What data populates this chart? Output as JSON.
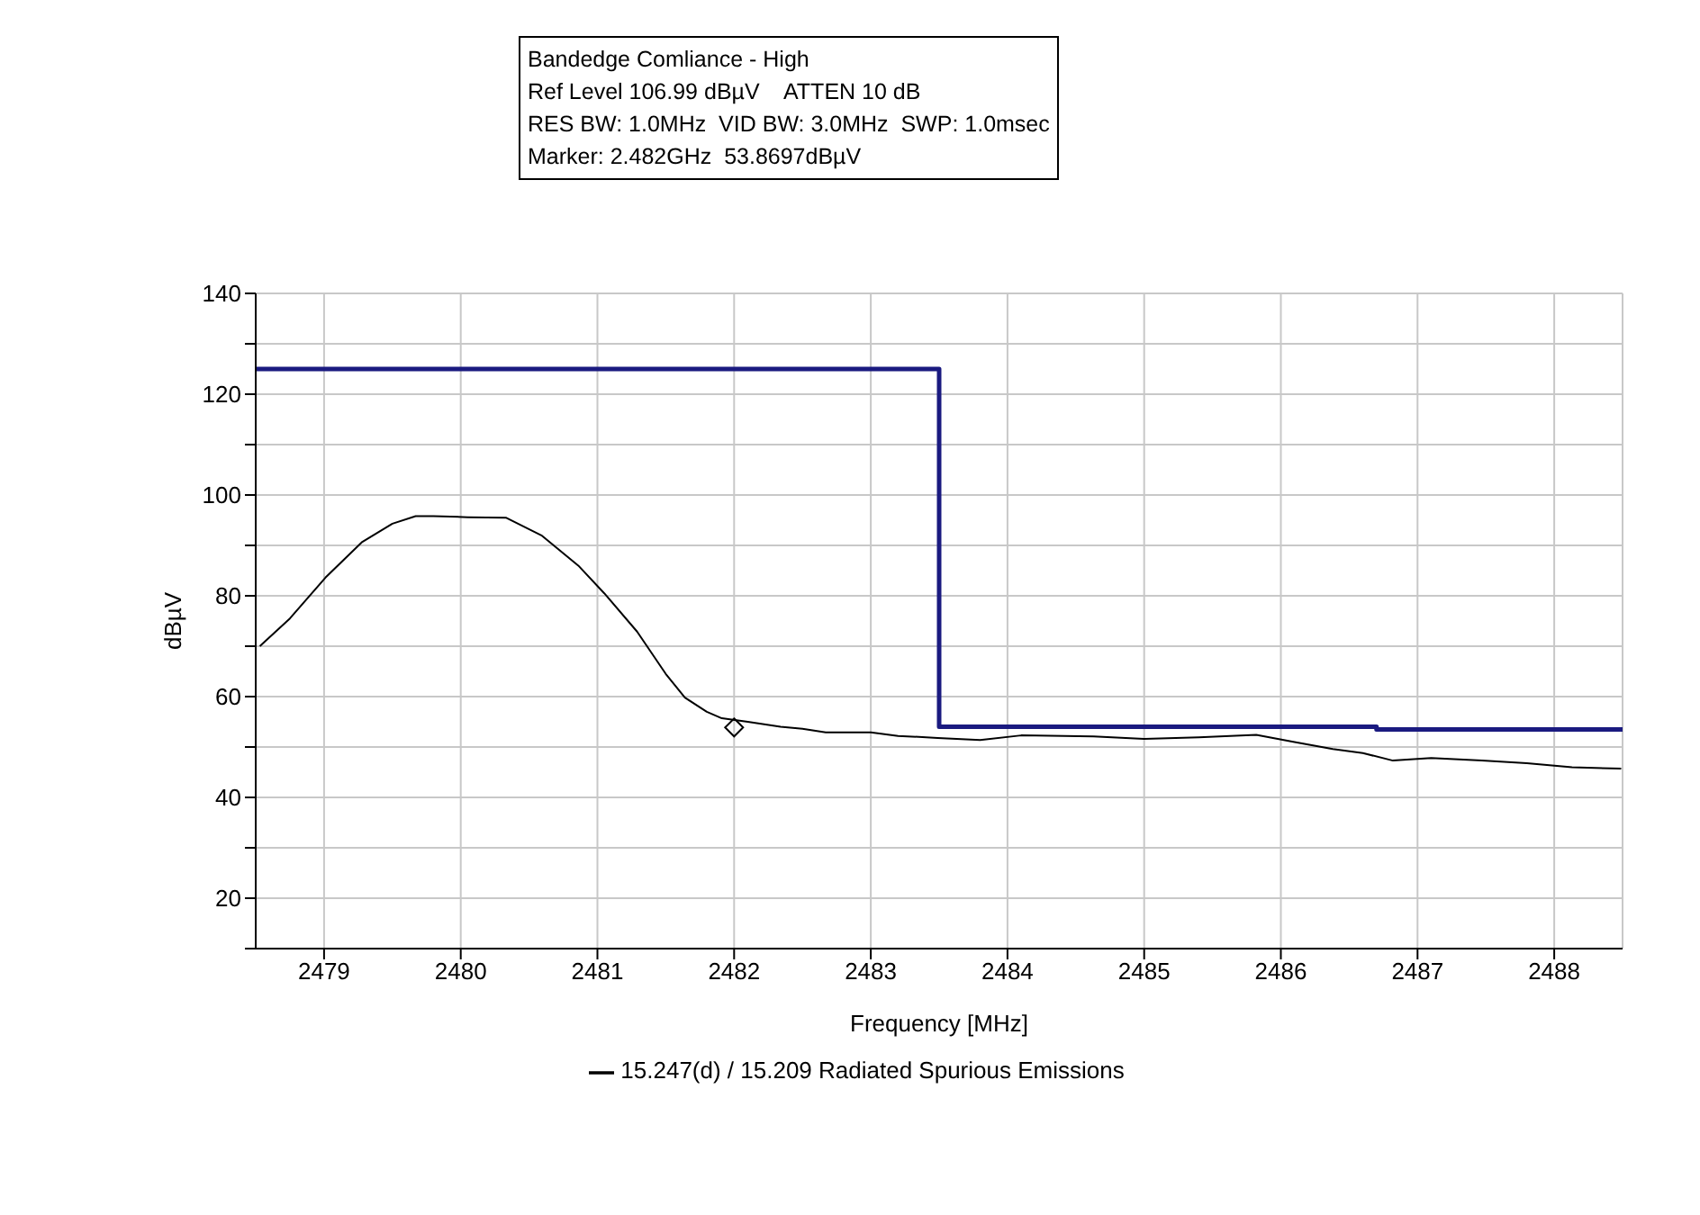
{
  "chart_data": {
    "type": "line",
    "title": "Bandedge Comliance - High",
    "annotations": [
      "Ref Level 106.99 dBµV    ATTEN 10 dB",
      "RES BW: 1.0MHz  VID BW: 3.0MHz  SWP: 1.0msec",
      "Marker: 2.482GHz  53.8697dBµV"
    ],
    "xlabel": "Frequency [MHz]",
    "ylabel": "dBµV",
    "series": [
      {
        "name": "15.247(d) / 15.209 Radiated Spurious Emissions",
        "color": "#000000",
        "x": [
          2478.53,
          2478.75,
          2479.01,
          2479.28,
          2479.5,
          2479.67,
          2479.8,
          2480.05,
          2480.33,
          2480.59,
          2480.86,
          2481.05,
          2481.29,
          2481.5,
          2481.64,
          2481.8,
          2481.91,
          2482.1,
          2482.34,
          2482.5,
          2482.67,
          2483.0,
          2483.2,
          2483.49,
          2483.8,
          2484.1,
          2484.63,
          2485.0,
          2485.4,
          2485.82,
          2486.1,
          2486.38,
          2486.6,
          2486.82,
          2487.1,
          2487.47,
          2487.8,
          2488.13,
          2488.49
        ],
        "values": [
          70,
          75.5,
          83.6,
          90.7,
          94.3,
          95.8,
          95.8,
          95.6,
          95.5,
          92,
          86,
          80.5,
          72.9,
          64.5,
          59.8,
          57,
          55.7,
          55,
          54,
          53.6,
          52.9,
          52.9,
          52.2,
          51.8,
          51.4,
          52.3,
          52.1,
          51.6,
          51.9,
          52.4,
          51,
          49.6,
          48.8,
          47.3,
          47.8,
          47.3,
          46.8,
          46,
          45.7
        ]
      },
      {
        "type": "scatter",
        "color": "#000000",
        "marker": "diamond",
        "x": [
          2482
        ],
        "values": [
          53.8697
        ]
      },
      {
        "color": "#1a1a80",
        "x": [
          2478.5,
          2483.5,
          2483.5,
          2486.7,
          2486.7,
          2488.5
        ],
        "values": [
          125,
          125,
          54,
          54,
          53.5,
          53.5
        ]
      }
    ],
    "xlim": [
      2478.5,
      2488.5
    ],
    "xticks": [
      2479,
      2480,
      2481,
      2482,
      2483,
      2484,
      2485,
      2486,
      2487,
      2488
    ],
    "ylim": [
      10,
      140
    ],
    "yticks": [
      {
        "value": 10,
        "label": null
      },
      20,
      {
        "value": 30,
        "label": null
      },
      40,
      {
        "value": 50,
        "label": null
      },
      60,
      {
        "value": 70,
        "label": null
      },
      80,
      {
        "value": 90,
        "label": null
      },
      100,
      {
        "value": 110,
        "label": null
      },
      120,
      {
        "value": 130,
        "label": null
      },
      140
    ],
    "grid": true,
    "legend": "bottom",
    "marker": "none",
    "line_style": "solid"
  }
}
